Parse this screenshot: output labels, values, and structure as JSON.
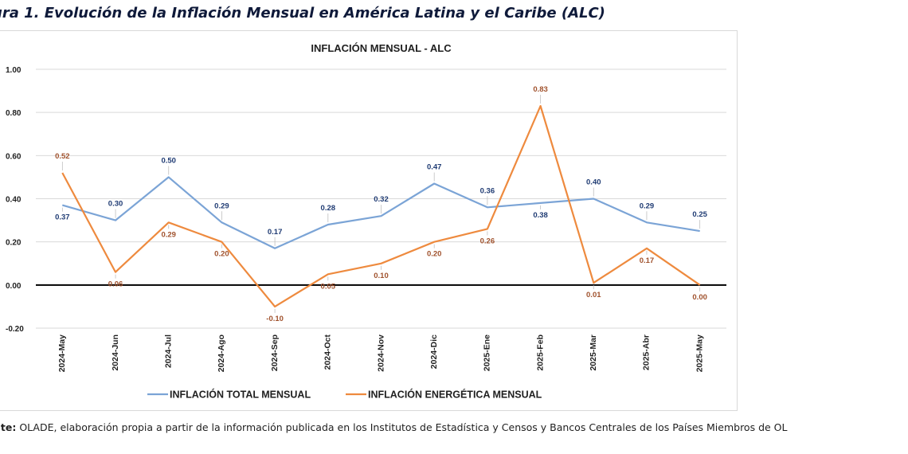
{
  "figure": {
    "title": "ura 1. Evolución de la Inflación Mensual en América Latina y el Caribe (ALC)",
    "source_label": "nte:",
    "source_text": " OLADE, elaboración propia a partir de la información publicada en los Institutos de Estadística y Censos y Bancos Centrales de los Países Miembros de OL"
  },
  "colors": {
    "total": "#7ba4d6",
    "energy": "#ee8a3e",
    "total_label": "#1f3b73",
    "energy_label": "#a0522d",
    "grid": "#d9d9d9",
    "zero_line": "#000000"
  },
  "chart_data": {
    "type": "line",
    "title": "INFLACIÓN MENSUAL - ALC",
    "xlabel": "",
    "ylabel": "",
    "ylim": [
      -0.2,
      1.0
    ],
    "yticks": [
      "-0.20",
      "0.00",
      "0.20",
      "0.40",
      "0.60",
      "0.80",
      "1.00"
    ],
    "ytick_values": [
      -0.2,
      0.0,
      0.2,
      0.4,
      0.6,
      0.8,
      1.0
    ],
    "grid": true,
    "legend_position": "bottom",
    "categories": [
      "2024-May",
      "2024-Jun",
      "2024-Jul",
      "2024-Ago",
      "2024-Sep",
      "2024-Oct",
      "2024-Nov",
      "2024-Dic",
      "2025-Ene",
      "2025-Feb",
      "2025-Mar",
      "2025-Abr",
      "2025-May"
    ],
    "series": [
      {
        "name": "INFLACIÓN TOTAL MENSUAL",
        "values": [
          0.37,
          0.3,
          0.5,
          0.29,
          0.17,
          0.28,
          0.32,
          0.47,
          0.36,
          0.38,
          0.4,
          0.29,
          0.25
        ],
        "labels": [
          "0.37",
          "0.30",
          "0.50",
          "0.29",
          "0.17",
          "0.28",
          "0.32",
          "0.47",
          "0.36",
          "0.38",
          "0.40",
          "0.29",
          "0.25"
        ]
      },
      {
        "name": "INFLACIÓN ENERGÉTICA MENSUAL",
        "values": [
          0.52,
          0.06,
          0.29,
          0.2,
          -0.1,
          0.05,
          0.1,
          0.2,
          0.26,
          0.83,
          0.01,
          0.17,
          0.0
        ],
        "labels": [
          "0.52",
          "0.06",
          "0.29",
          "0.20",
          "-0.10",
          "0.05",
          "0.10",
          "0.20",
          "0.26",
          "0.83",
          "0.01",
          "0.17",
          "0.00"
        ]
      }
    ]
  }
}
